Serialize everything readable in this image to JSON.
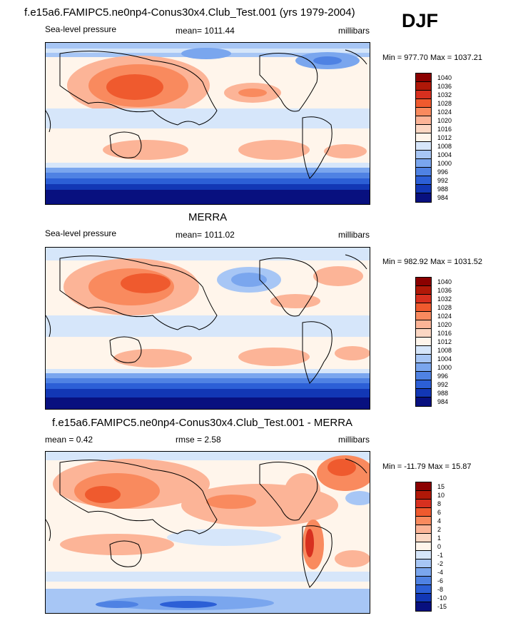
{
  "header": {
    "djf_label": "DJF"
  },
  "panels": [
    {
      "title": "f.e15a6.FAMIPC5.ne0np4-Conus30x4.Club_Test.001 (yrs 1979-2004)",
      "left_label": "Sea-level pressure",
      "center_label": "mean= 1011.44",
      "units": "millibars",
      "minmax": "Min = 977.70 Max = 1037.21",
      "levels": [
        "1040",
        "1036",
        "1032",
        "1028",
        "1024",
        "1020",
        "1016",
        "1012",
        "1008",
        "1004",
        "1000",
        "996",
        "992",
        "988",
        "984"
      ],
      "colors": [
        "#8b0000",
        "#b01808",
        "#d7301f",
        "#ef5a2e",
        "#f98a5e",
        "#fcb497",
        "#fcd7c3",
        "#fff5eb",
        "#d6e6fa",
        "#a7c6f5",
        "#7aa6ee",
        "#4f82e3",
        "#2c5fd6",
        "#1237b5",
        "#08107f"
      ]
    },
    {
      "title": "MERRA",
      "left_label": "Sea-level pressure",
      "center_label": "mean= 1011.02",
      "units": "millibars",
      "minmax": "Min = 982.92 Max = 1031.52",
      "levels": [
        "1040",
        "1036",
        "1032",
        "1028",
        "1024",
        "1020",
        "1016",
        "1012",
        "1008",
        "1004",
        "1000",
        "996",
        "992",
        "988",
        "984"
      ],
      "colors": [
        "#8b0000",
        "#b01808",
        "#d7301f",
        "#ef5a2e",
        "#f98a5e",
        "#fcb497",
        "#fcd7c3",
        "#fff5eb",
        "#d6e6fa",
        "#a7c6f5",
        "#7aa6ee",
        "#4f82e3",
        "#2c5fd6",
        "#1237b5",
        "#08107f"
      ]
    },
    {
      "title": "f.e15a6.FAMIPC5.ne0np4-Conus30x4.Club_Test.001 - MERRA",
      "left_label": "mean =   0.42",
      "center_label": "rmse =   2.58",
      "units": "millibars",
      "minmax": "Min = -11.79 Max =  15.87",
      "levels": [
        "15",
        "10",
        "8",
        "6",
        "4",
        "2",
        "1",
        "0",
        "-1",
        "-2",
        "-4",
        "-6",
        "-8",
        "-10",
        "-15"
      ],
      "colors": [
        "#8b0000",
        "#b01808",
        "#d7301f",
        "#ef5a2e",
        "#f98a5e",
        "#fcb497",
        "#fcd7c3",
        "#fff5eb",
        "#d6e6fa",
        "#a7c6f5",
        "#7aa6ee",
        "#4f82e3",
        "#2c5fd6",
        "#1237b5",
        "#08107f"
      ]
    }
  ]
}
